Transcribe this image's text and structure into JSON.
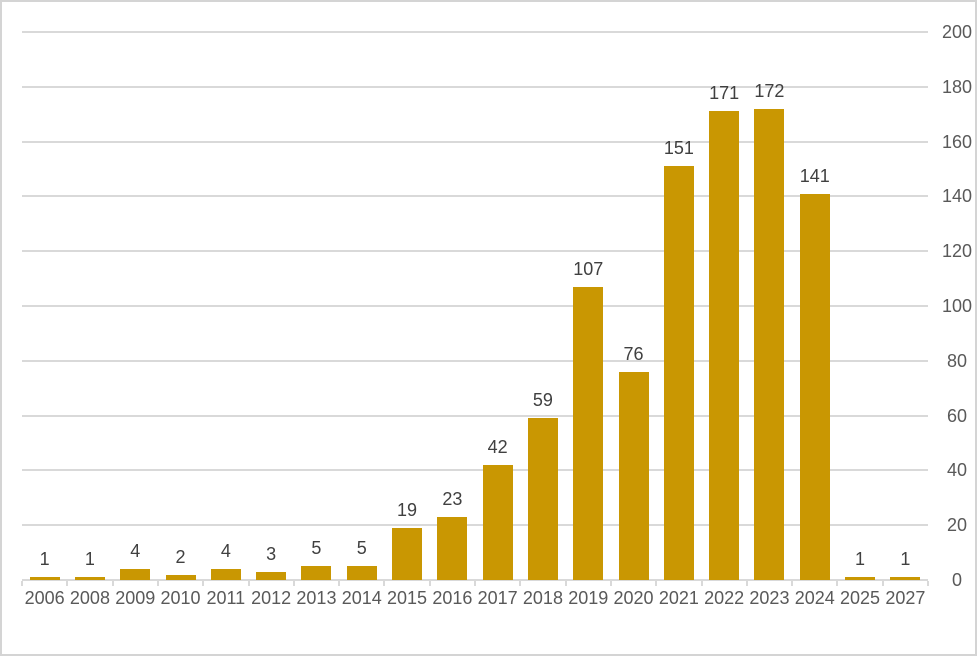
{
  "chart_data": {
    "type": "bar",
    "title": "",
    "xlabel": "",
    "ylabel": "",
    "categories": [
      "2006",
      "2008",
      "2009",
      "2010",
      "2011",
      "2012",
      "2013",
      "2014",
      "2015",
      "2016",
      "2017",
      "2018",
      "2019",
      "2020",
      "2021",
      "2022",
      "2023",
      "2024",
      "2025",
      "2027"
    ],
    "values": [
      1,
      1,
      4,
      2,
      4,
      3,
      5,
      5,
      19,
      23,
      42,
      59,
      107,
      76,
      151,
      171,
      172,
      141,
      1,
      1
    ],
    "ylim": [
      0,
      200
    ],
    "yticks": [
      0,
      20,
      40,
      60,
      80,
      100,
      120,
      140,
      160,
      180,
      200
    ],
    "value_axis_side": "right",
    "grid": true,
    "legend": false,
    "data_labels": true,
    "colors": {
      "bar": "#C99702",
      "gridline": "#D9D9D9",
      "axis_line": "#D9D9D9",
      "tick_label": "#595959",
      "data_label": "#404040",
      "frame_border": "#D4D4D4",
      "background": "#FFFFFF"
    }
  }
}
